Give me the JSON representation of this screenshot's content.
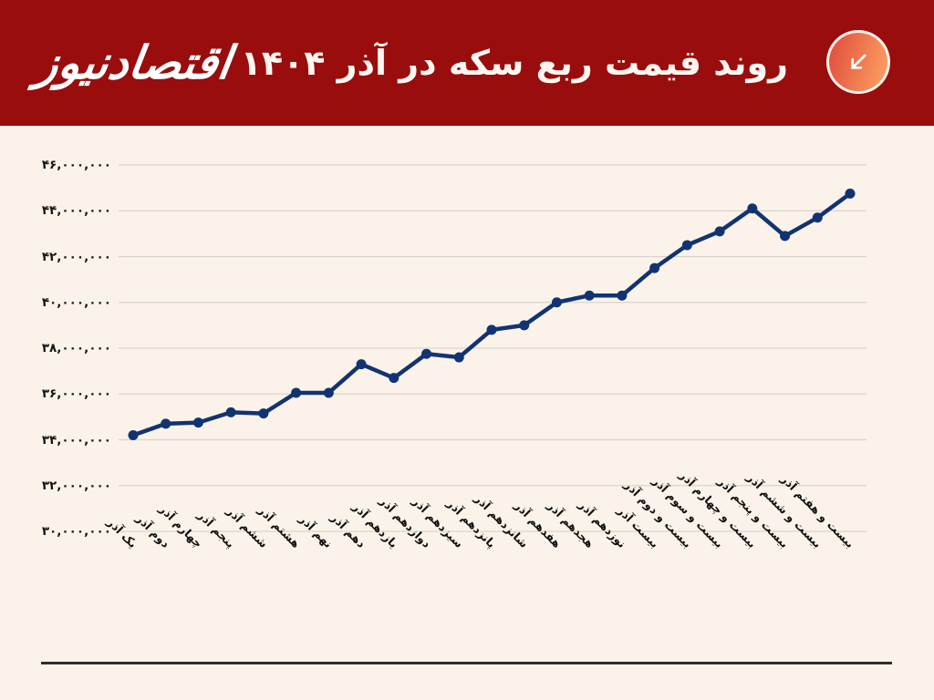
{
  "header": {
    "title": "روند قیمت ربع سکه در آذر ۱۴۰۴",
    "logo_text": "اقتصادنیوز",
    "icon": "arrow-down-left-icon",
    "bg_color": "#9A0D0D",
    "icon_gradient": [
      "#E2543E",
      "#FB9B61"
    ]
  },
  "colors": {
    "page_background": "#FBF3EA",
    "header_background": "#9A0D0D",
    "line": "#123372",
    "gridline": "#D9D4CB",
    "axis_text": "#151515",
    "footer_rule": "#2F2D2B"
  },
  "chart_data": {
    "type": "line",
    "title": "روند قیمت ربع سکه در آذر ۱۴۰۴",
    "categories": [
      "یک آذر",
      "دوم آذر",
      "چهارم آذر",
      "پنجم آذر",
      "ششم آذر",
      "هشتم آذر",
      "نهم آذر",
      "دهم آذر",
      "یازدهم آذر",
      "دوازدهم آذر",
      "سیزدهم آذر",
      "پانزدهم آذر",
      "شانزدهم آذر",
      "هفدهم آذر",
      "هجدهم آذر",
      "نوزدهم آذر",
      "بیست آذر",
      "بیست و دوم آذر",
      "بیست و سوم آذر",
      "بیست و چهارم آذر",
      "بیست و پنجم آذر",
      "بیست و ششم آذر",
      "بیست و هفتم آذر"
    ],
    "values": [
      34200000,
      34700000,
      34750000,
      35200000,
      35150000,
      36050000,
      36050000,
      37300000,
      36700000,
      37750000,
      37600000,
      38800000,
      39000000,
      40000000,
      40300000,
      40300000,
      41500000,
      42500000,
      43100000,
      44100000,
      42900000,
      43700000,
      44750000
    ],
    "y_ticks": [
      46000000,
      44000000,
      42000000,
      40000000,
      38000000,
      36000000,
      34000000,
      32000000,
      30000000
    ],
    "y_tick_labels": [
      "۴۶,۰۰۰,۰۰۰",
      "۴۴,۰۰۰,۰۰۰",
      "۴۲,۰۰۰,۰۰۰",
      "۴۰,۰۰۰,۰۰۰",
      "۳۸,۰۰۰,۰۰۰",
      "۳۶,۰۰۰,۰۰۰",
      "۳۴,۰۰۰,۰۰۰",
      "۳۲,۰۰۰,۰۰۰",
      "۳۰,۰۰۰,۰۰۰"
    ],
    "ylim": [
      30000000,
      46000000
    ],
    "xlabel": "",
    "ylabel": "",
    "legend": "none",
    "grid": "horizontal",
    "line_color": "#123372",
    "grid_color": "#D9D4CB",
    "marker": "circle"
  }
}
